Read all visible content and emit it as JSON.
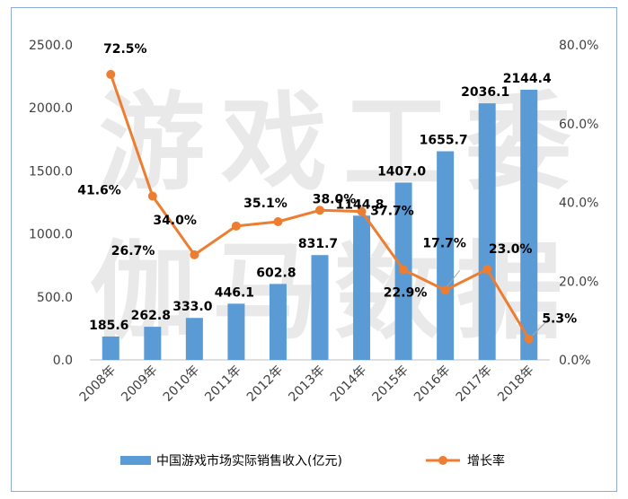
{
  "chart_data": {
    "type": "bar",
    "categories": [
      "2008年",
      "2009年",
      "2010年",
      "2011年",
      "2012年",
      "2013年",
      "2014年",
      "2015年",
      "2016年",
      "2017年",
      "2018年"
    ],
    "series": [
      {
        "name": "中国游戏市场实际销售收入(亿元)",
        "type": "bar",
        "axis": "left",
        "color": "#5b9bd5",
        "values": [
          185.6,
          262.8,
          333.0,
          446.1,
          602.8,
          831.7,
          1144.8,
          1407.0,
          1655.7,
          2036.1,
          2144.4
        ],
        "labels": [
          "185.6",
          "262.8",
          "333.0",
          "446.1",
          "602.8",
          "831.7",
          "1144.8",
          "1407.0",
          "1655.7",
          "2036.1",
          "2144.4"
        ]
      },
      {
        "name": "增长率",
        "type": "line",
        "axis": "right",
        "color": "#ed7d31",
        "values": [
          72.5,
          41.6,
          26.7,
          34.0,
          35.1,
          38.0,
          37.7,
          22.9,
          17.7,
          23.0,
          5.3
        ],
        "labels": [
          "72.5%",
          "41.6%",
          "26.7%",
          "34.0%",
          "35.1%",
          "38.0%",
          "37.7%",
          "22.9%",
          "17.7%",
          "23.0%",
          "5.3%"
        ]
      }
    ],
    "y_left": {
      "ylim": [
        0,
        2500
      ],
      "ticks": [
        "0.0",
        "500.0",
        "1000.0",
        "1500.0",
        "2000.0",
        "2500.0"
      ]
    },
    "y_right": {
      "ylim": [
        0,
        80
      ],
      "ticks": [
        "0.0%",
        "20.0%",
        "40.0%",
        "60.0%",
        "80.0%"
      ]
    },
    "grid": false,
    "legend": "bottom"
  },
  "watermark": [
    "游戏工委",
    "伽马数据"
  ]
}
